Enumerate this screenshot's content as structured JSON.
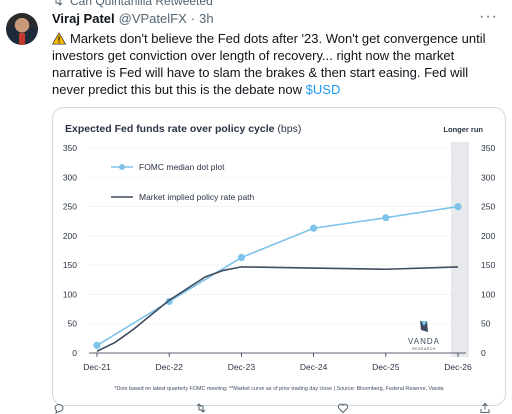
{
  "retweet": {
    "text": "Carl Quintanilla Retweeted"
  },
  "tweet": {
    "author_name": "Viraj Patel",
    "handle": "@VPatelFX",
    "separator": "·",
    "time": "3h",
    "text_before": "Markets don't believe the Fed dots after '23. Won't get convergence until investors get conviction over length of recovery... right now the market narrative is Fed will have to slam the brakes & then start easing. Fed will never predict this but this is the debate now ",
    "cashtag": "$USD",
    "more_label": "···"
  },
  "chart_data": {
    "type": "line",
    "title": "Expected Fed funds rate over policy cycle",
    "title_unit": " (bps)",
    "longer_run_label": "Longer run",
    "categories": [
      "Dec-21",
      "Dec-22",
      "Dec-23",
      "Dec-24",
      "Dec-25",
      "Dec-26"
    ],
    "ylim": [
      0,
      350
    ],
    "yticks": [
      0,
      50,
      100,
      150,
      200,
      250,
      300,
      350
    ],
    "series": [
      {
        "name": "FOMC median dot plot",
        "color": "#7ec3ea",
        "markers": true,
        "x": [
          0,
          1,
          2,
          3,
          4,
          5
        ],
        "values": [
          13,
          88,
          163,
          213,
          231,
          250
        ]
      },
      {
        "name": "Market implied policy rate path",
        "color": "#3e4c5e",
        "markers": false,
        "x": [
          0,
          0.25,
          0.5,
          0.75,
          1.0,
          1.25,
          1.5,
          1.75,
          2.0,
          3.0,
          4.0,
          5.0
        ],
        "values": [
          3,
          18,
          40,
          65,
          90,
          110,
          130,
          141,
          147,
          145,
          143,
          147
        ]
      }
    ],
    "footnote": "*Dots based on latest quarterly FOMC meeting; **Market curve as of prior trading day close | Source: Bloomberg, Federal Reserve, Vanda",
    "logo_text": "VANDA",
    "logo_sub": "RESEARCH",
    "grid": true,
    "legend_position": "top-left"
  },
  "colors": {
    "accent": "#1d9bf0",
    "muted": "#536471"
  },
  "actions": {
    "reply_icon": "reply-icon",
    "retweet_icon": "retweet-icon",
    "like_icon": "like-icon",
    "share_icon": "share-icon"
  }
}
